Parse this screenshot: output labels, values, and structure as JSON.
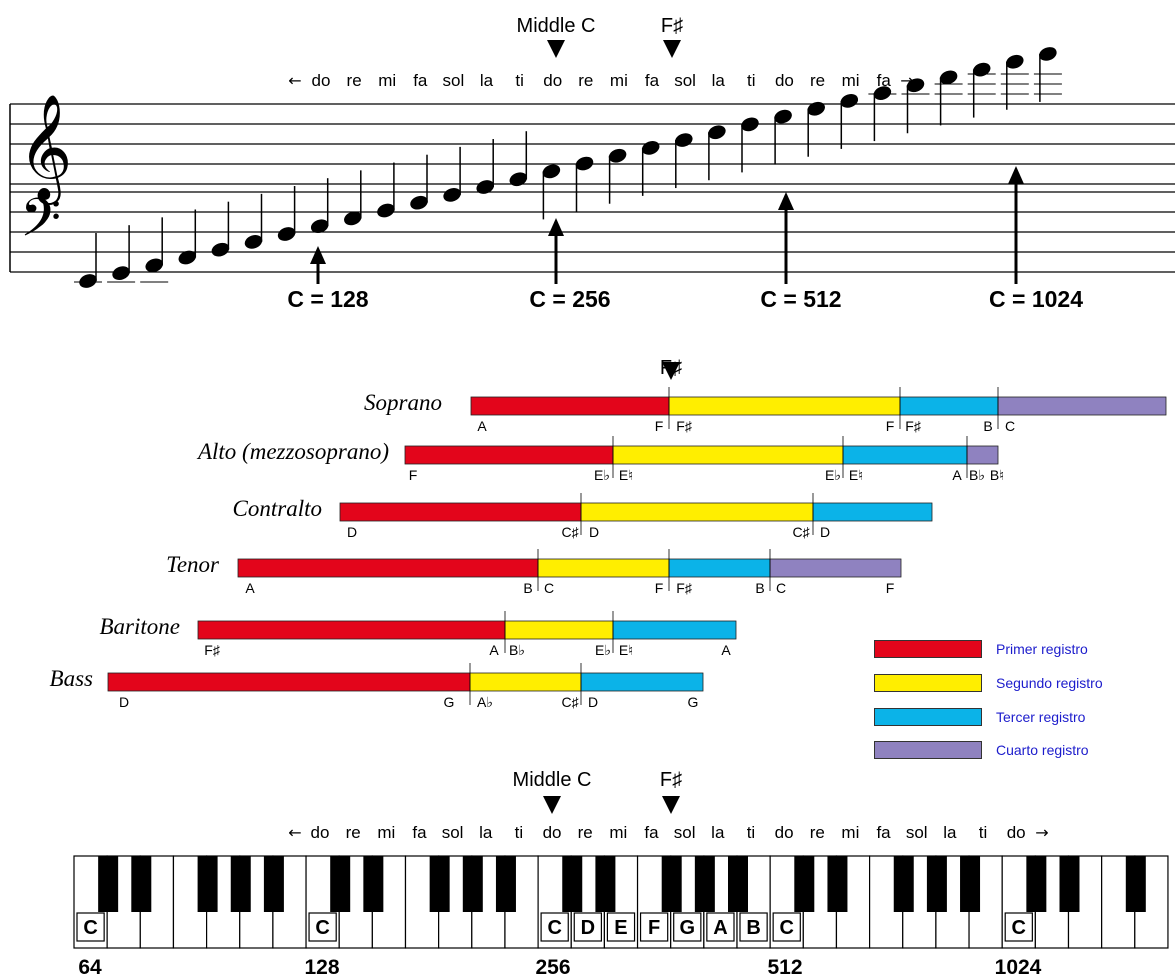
{
  "colors": {
    "primer": "#e3051b",
    "segundo": "#ffee00",
    "tercer": "#0bb3e8",
    "cuarto": "#8f82c0",
    "legend_text": "#1c1ccc",
    "ink": "#000000"
  },
  "staff": {
    "marker_middle_c": "Middle C",
    "marker_fsharp": "F♯",
    "solfege": [
      "do",
      "re",
      "mi",
      "fa",
      "sol",
      "la",
      "ti",
      "do",
      "re",
      "mi",
      "fa",
      "sol",
      "la",
      "ti",
      "do",
      "re",
      "mi",
      "fa"
    ],
    "arrow_left": "←",
    "arrow_right": "→",
    "frequencies": [
      "C = 128",
      "C = 256",
      "C = 512",
      "C = 1024"
    ],
    "treble_clef_symbol": "𝄞",
    "bass_clef_symbol": "𝄢"
  },
  "ranges": {
    "fsharp_marker": "F♯",
    "voices": [
      {
        "name": "Soprano",
        "notes": [
          "A",
          "F",
          "F♯",
          "F",
          "F♯",
          "B",
          "C"
        ]
      },
      {
        "name": "Alto (mezzosoprano)",
        "notes": [
          "F",
          "E♭",
          "E♮",
          "E♭",
          "E♮",
          "A",
          "B♭",
          "B♮"
        ]
      },
      {
        "name": "Contralto",
        "notes": [
          "D",
          "C♯",
          "D",
          "C♯",
          "D"
        ]
      },
      {
        "name": "Tenor",
        "notes": [
          "A",
          "B",
          "C",
          "F",
          "F♯",
          "B",
          "C",
          "F"
        ]
      },
      {
        "name": "Baritone",
        "notes": [
          "F♯",
          "A",
          "B♭",
          "E♭",
          "E♮",
          "A"
        ]
      },
      {
        "name": "Bass",
        "notes": [
          "D",
          "G",
          "A♭",
          "C♯",
          "D",
          "G"
        ]
      }
    ]
  },
  "legend": [
    {
      "key": "primer",
      "label": "Primer registro"
    },
    {
      "key": "segundo",
      "label": "Segundo registro"
    },
    {
      "key": "tercer",
      "label": "Tercer registro"
    },
    {
      "key": "cuarto",
      "label": "Cuarto registro"
    }
  ],
  "keyboard": {
    "marker_middle_c": "Middle C",
    "marker_fsharp": "F♯",
    "solfege": [
      "do",
      "re",
      "mi",
      "fa",
      "sol",
      "la",
      "ti",
      "do",
      "re",
      "mi",
      "fa",
      "sol",
      "la",
      "ti",
      "do",
      "re",
      "mi",
      "fa",
      "sol",
      "la",
      "ti",
      "do"
    ],
    "arrow_left": "←",
    "arrow_right": "→",
    "key_labels": [
      "C",
      "C",
      "C",
      "D",
      "E",
      "F",
      "G",
      "A",
      "B",
      "C",
      "C"
    ],
    "frequencies": [
      "64",
      "128",
      "256",
      "512",
      "1024"
    ]
  }
}
